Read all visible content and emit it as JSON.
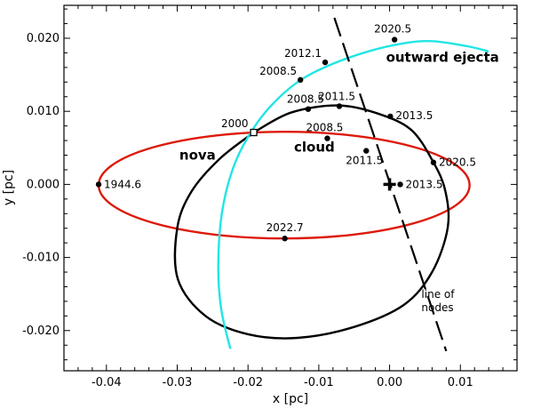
{
  "chart_data": {
    "type": "line",
    "xlabel": "x [pc]",
    "ylabel": "y [pc]",
    "xlim": [
      -0.046,
      0.018
    ],
    "ylim": [
      -0.0255,
      0.0245
    ],
    "x_ticks": [
      -0.04,
      -0.03,
      -0.02,
      -0.01,
      0.0,
      0.01
    ],
    "x_tick_labels": [
      "-0.04",
      "-0.03",
      "-0.02",
      "-0.01",
      "0.00",
      "0.01"
    ],
    "y_ticks": [
      -0.02,
      -0.01,
      0.0,
      0.01,
      0.02
    ],
    "y_tick_labels": [
      "-0.020",
      "-0.010",
      "0.000",
      "0.010",
      "0.020"
    ],
    "colors": {
      "nova": "#dd1a0a",
      "cloud": "#000000",
      "ejecta": "#22e5e5",
      "nodes": "#000000"
    },
    "region_labels": [
      {
        "text": "nova",
        "x": -0.0297,
        "y": 0.0034
      },
      {
        "text": "cloud",
        "x": -0.0135,
        "y": 0.0045
      },
      {
        "text": "outward ejecta",
        "x": -0.0005,
        "y": 0.0168
      }
    ],
    "nodes_label": {
      "line1": "line of",
      "line2": "nodes",
      "x": 0.0045,
      "y": -0.0155
    },
    "series": [
      {
        "key": "nova",
        "kind": "ellipse",
        "cx": -0.0149,
        "cy": -0.0001,
        "rx": 0.0262,
        "ry": 0.0073,
        "points": [
          {
            "x": -0.0411,
            "y": 0.0,
            "label": "1944.6"
          },
          {
            "x": -0.0148,
            "y": -0.0074,
            "label": "2022.7"
          },
          {
            "x": -0.0192,
            "y": 0.0071,
            "label": "2000"
          }
        ]
      },
      {
        "key": "cloud",
        "kind": "path",
        "path": [
          [
            -0.0192,
            0.0071
          ],
          [
            -0.014,
            0.0098
          ],
          [
            -0.0075,
            0.0108
          ],
          [
            -0.002,
            0.0098
          ],
          [
            0.003,
            0.0075
          ],
          [
            0.0062,
            0.003
          ],
          [
            0.0079,
            -0.001
          ],
          [
            0.0082,
            -0.006
          ],
          [
            0.006,
            -0.012
          ],
          [
            0.002,
            -0.0165
          ],
          [
            -0.005,
            -0.0195
          ],
          [
            -0.013,
            -0.021
          ],
          [
            -0.02,
            -0.0205
          ],
          [
            -0.026,
            -0.018
          ],
          [
            -0.0299,
            -0.013
          ],
          [
            -0.03,
            -0.006
          ],
          [
            -0.028,
            -0.001
          ],
          [
            -0.024,
            0.0035
          ],
          [
            -0.0192,
            0.0071
          ]
        ],
        "points": [
          {
            "x": -0.0115,
            "y": 0.0103,
            "label": "2008.5"
          },
          {
            "x": -0.0071,
            "y": 0.0107,
            "label": "2011.5"
          },
          {
            "x": 0.0001,
            "y": 0.0093,
            "label": "2013.5"
          },
          {
            "x": 0.0062,
            "y": 0.003,
            "label": "2020.5"
          },
          {
            "x": -0.0088,
            "y": 0.0063,
            "label": "2008.5"
          },
          {
            "x": -0.0033,
            "y": 0.0046,
            "label": "2011.5"
          },
          {
            "x": 0.0015,
            "y": 0.0,
            "label": "2013.5"
          }
        ]
      },
      {
        "key": "ejecta",
        "kind": "path",
        "path": [
          [
            -0.0225,
            -0.0225
          ],
          [
            -0.0238,
            -0.017
          ],
          [
            -0.0242,
            -0.011
          ],
          [
            -0.0237,
            -0.004
          ],
          [
            -0.0222,
            0.002
          ],
          [
            -0.02,
            0.0065
          ],
          [
            -0.017,
            0.0105
          ],
          [
            -0.013,
            0.014
          ],
          [
            -0.0085,
            0.0163
          ],
          [
            -0.003,
            0.0182
          ],
          [
            0.002,
            0.0193
          ],
          [
            0.006,
            0.0196
          ],
          [
            0.011,
            0.0189
          ],
          [
            0.014,
            0.0182
          ]
        ],
        "points": [
          {
            "x": -0.0126,
            "y": 0.0143,
            "label": "2008.5"
          },
          {
            "x": -0.0091,
            "y": 0.0167,
            "label": "2012.1"
          },
          {
            "x": 0.0007,
            "y": 0.0198,
            "label": "2020.5"
          }
        ]
      },
      {
        "key": "nodes",
        "kind": "dashed-line",
        "path": [
          [
            -0.0078,
            0.0228
          ],
          [
            0.008,
            -0.0228
          ]
        ]
      }
    ],
    "origin_marker": {
      "x": 0.0,
      "y": 0.0
    }
  }
}
